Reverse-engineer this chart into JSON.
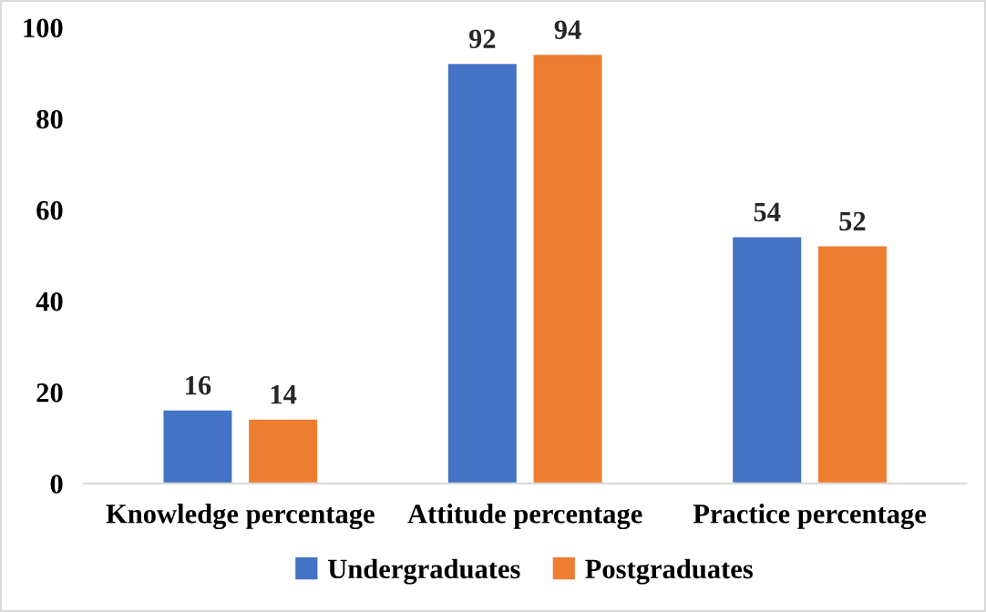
{
  "chart_data": {
    "type": "bar",
    "categories": [
      "Knowledge percentage",
      "Attitude percentage",
      "Practice percentage"
    ],
    "series": [
      {
        "name": "Undergraduates",
        "color": "#4472c4",
        "values": [
          16,
          92,
          54
        ]
      },
      {
        "name": "Postgraduates",
        "color": "#ed7d31",
        "values": [
          14,
          94,
          52
        ]
      }
    ],
    "ylim": [
      0,
      100
    ],
    "yticks": [
      0,
      20,
      40,
      60,
      80,
      100
    ],
    "grid": false,
    "legend": "bottom",
    "data_labels": true
  }
}
